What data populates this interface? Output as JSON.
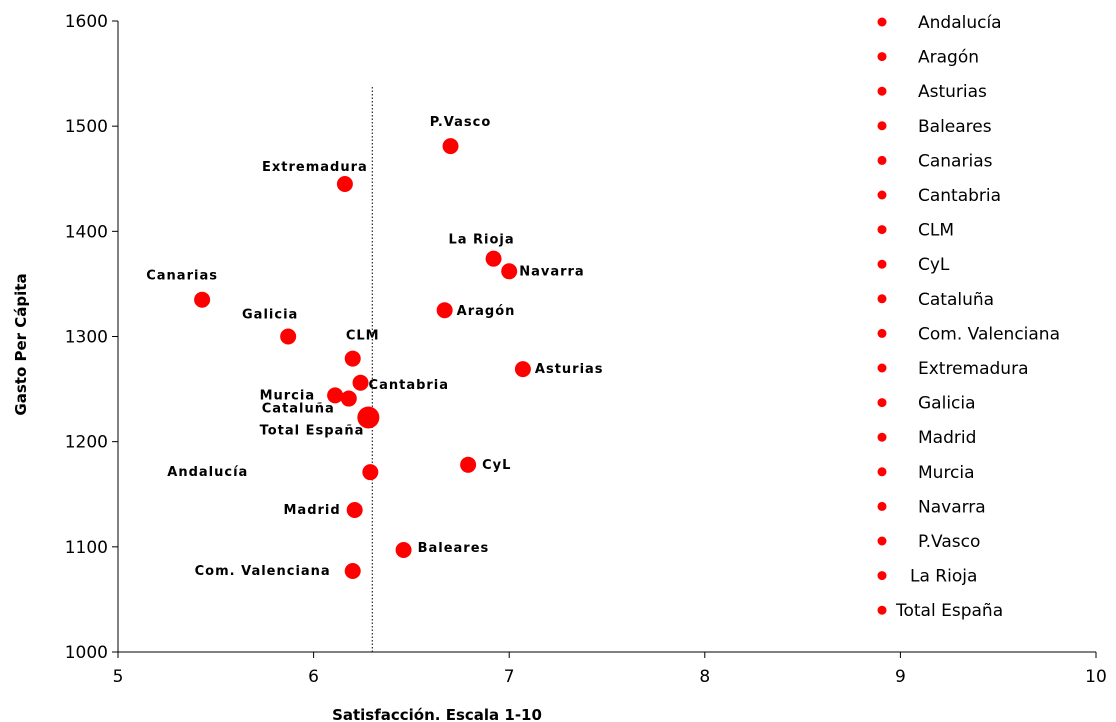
{
  "chart_data": {
    "type": "scatter",
    "title": "",
    "xlabel": "Satisfacción. Escala 1-10",
    "ylabel": "Gasto Per Cápita",
    "xlim": [
      5,
      10
    ],
    "ylim": [
      1000,
      1600
    ],
    "xticks": [
      "5",
      "6",
      "7",
      "8",
      "9",
      "10"
    ],
    "yticks": [
      "1000",
      "1100",
      "1200",
      "1300",
      "1400",
      "1500",
      "1600"
    ],
    "grid": false,
    "legend_position": "right",
    "marker_color": "#ff0000",
    "reference_line": {
      "x": 6.3,
      "style": "dotted"
    },
    "series": [
      {
        "name": "Andalucía",
        "label": "Andalucía",
        "x": 6.29,
        "y": 1171
      },
      {
        "name": "Aragón",
        "label": "Aragón",
        "x": 6.67,
        "y": 1325
      },
      {
        "name": "Asturias",
        "label": "Asturias",
        "x": 7.07,
        "y": 1269
      },
      {
        "name": "Baleares",
        "label": "Baleares",
        "x": 6.46,
        "y": 1097
      },
      {
        "name": "Canarias",
        "label": "Canarias",
        "x": 5.43,
        "y": 1335
      },
      {
        "name": "Cantabria",
        "label": "Cantabria",
        "x": 6.24,
        "y": 1256
      },
      {
        "name": "CLM",
        "label": "CLM",
        "x": 6.2,
        "y": 1279
      },
      {
        "name": "CyL",
        "label": "CyL",
        "x": 6.79,
        "y": 1178
      },
      {
        "name": "Cataluña",
        "label": "Cataluña",
        "x": 6.18,
        "y": 1241
      },
      {
        "name": "Com. Valenciana",
        "label": "Com. Valenciana",
        "x": 6.2,
        "y": 1077
      },
      {
        "name": "Extremadura",
        "label": "Extremadura",
        "x": 6.16,
        "y": 1445
      },
      {
        "name": "Galicia",
        "label": "Galicia",
        "x": 5.87,
        "y": 1300
      },
      {
        "name": "Madrid",
        "label": "Madrid",
        "x": 6.21,
        "y": 1135
      },
      {
        "name": "Murcia",
        "label": "Murcia",
        "x": 6.11,
        "y": 1244
      },
      {
        "name": "Navarra",
        "label": "Navarra",
        "x": 7.0,
        "y": 1362
      },
      {
        "name": "P.Vasco",
        "label": "P.Vasco",
        "x": 6.7,
        "y": 1481
      },
      {
        "name": "La Rioja",
        "label": "La Rioja",
        "x": 6.92,
        "y": 1374
      },
      {
        "name": "Total España",
        "label": "Total España",
        "x": 6.28,
        "y": 1223
      }
    ]
  }
}
